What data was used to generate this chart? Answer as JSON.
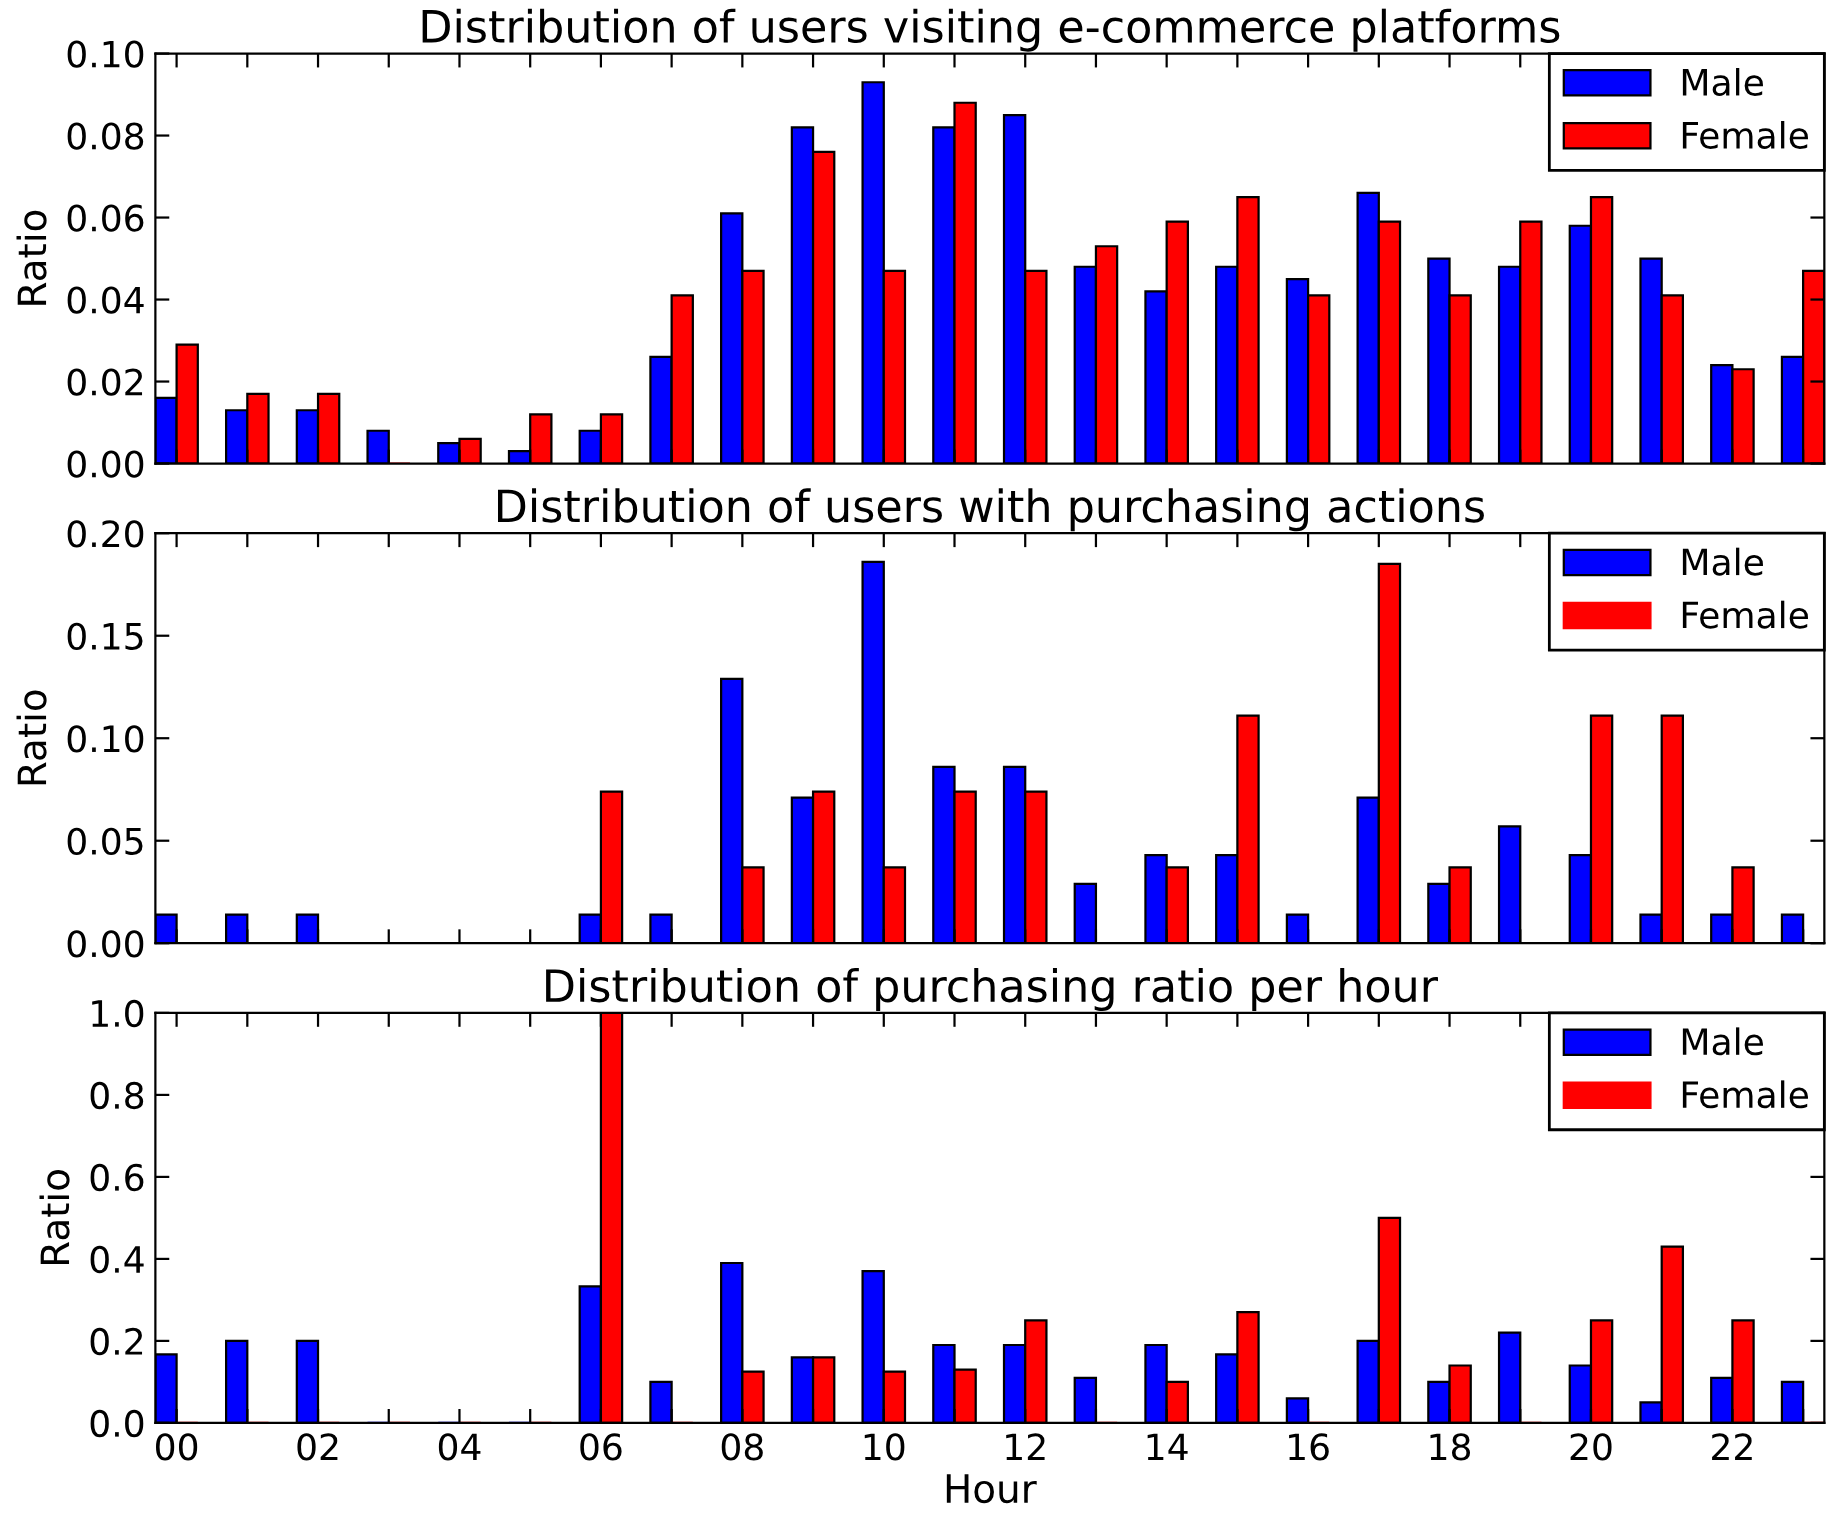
{
  "chart_data": [
    {
      "type": "bar",
      "title": "Distribution of users visiting e-commerce platforms",
      "ylabel": "Ratio",
      "categories": [
        "00",
        null,
        "02",
        null,
        "04",
        null,
        "06",
        null,
        "08",
        null,
        "10",
        null,
        "12",
        null,
        "14",
        null,
        "16",
        null,
        "18",
        null,
        "20",
        null,
        "22",
        null
      ],
      "series": [
        {
          "name": "Male",
          "color": "#0000ff",
          "values": [
            0.016,
            0.013,
            0.013,
            0.008,
            0.005,
            0.003,
            0.008,
            0.026,
            0.061,
            0.082,
            0.093,
            0.082,
            0.085,
            0.048,
            0.042,
            0.048,
            0.045,
            0.066,
            0.05,
            0.048,
            0.058,
            0.05,
            0.024,
            0.026
          ]
        },
        {
          "name": "Female",
          "color": "#ff0000",
          "values": [
            0.029,
            0.017,
            0.017,
            0,
            0.006,
            0.012,
            0.012,
            0.041,
            0.047,
            0.076,
            0.047,
            0.088,
            0.047,
            0.053,
            0.059,
            0.065,
            0.041,
            0.059,
            0.041,
            0.059,
            0.065,
            0.041,
            0.023,
            0.047
          ]
        }
      ],
      "ylim": [
        0,
        0.1
      ],
      "yticks": [
        {
          "value": 0,
          "label": "0.00"
        },
        {
          "value": 0.02,
          "label": "0.02"
        },
        {
          "value": 0.04,
          "label": "0.04"
        },
        {
          "value": 0.06,
          "label": "0.06"
        },
        {
          "value": 0.08,
          "label": "0.08"
        },
        {
          "value": 0.1,
          "label": "0.10"
        }
      ],
      "legend": "top right",
      "tick_labels": "y"
    },
    {
      "type": "bar",
      "title": "Distribution of users with purchasing actions",
      "ylabel": "Ratio",
      "categories": [
        "00",
        null,
        "02",
        null,
        "04",
        null,
        "06",
        null,
        "08",
        null,
        "10",
        null,
        "12",
        null,
        "14",
        null,
        "16",
        null,
        "18",
        null,
        "20",
        null,
        "22",
        null
      ],
      "series": [
        {
          "name": "Male",
          "color": "#0000ff",
          "values": [
            0.014,
            0.014,
            0.014,
            0,
            0,
            0,
            0.014,
            0.014,
            0.129,
            0.071,
            0.186,
            0.086,
            0.086,
            0.029,
            0.043,
            0.043,
            0.014,
            0.071,
            0.029,
            0.057,
            0.043,
            0.014,
            0.014,
            0.014
          ]
        },
        {
          "name": "Female",
          "color": "#ff0000",
          "values": [
            0,
            0,
            0,
            0,
            0,
            0,
            0.074,
            0,
            0.037,
            0.074,
            0.037,
            0.074,
            0.074,
            0,
            0.037,
            0.111,
            0,
            0.185,
            0.037,
            0,
            0.111,
            0.111,
            0.037,
            0
          ]
        }
      ],
      "ylim": [
        0,
        0.2
      ],
      "yticks": [
        {
          "value": 0,
          "label": "0.00"
        },
        {
          "value": 0.05,
          "label": "0.05"
        },
        {
          "value": 0.1,
          "label": "0.10"
        },
        {
          "value": 0.15,
          "label": "0.15"
        },
        {
          "value": 0.2,
          "label": "0.20"
        }
      ],
      "legend": "top right",
      "tick_labels": "y"
    },
    {
      "type": "bar",
      "title": "Distribution of purchasing ratio per hour",
      "xlabel": "Hour",
      "ylabel": "Ratio",
      "categories": [
        "00",
        null,
        "02",
        null,
        "04",
        null,
        "06",
        null,
        "08",
        null,
        "10",
        null,
        "12",
        null,
        "14",
        null,
        "16",
        null,
        "18",
        null,
        "20",
        null,
        "22",
        null
      ],
      "series": [
        {
          "name": "Male",
          "color": "#0000ff",
          "values": [
            0.167,
            0.2,
            0.2,
            0,
            0,
            0,
            0.333,
            0.1,
            0.39,
            0.16,
            0.37,
            0.19,
            0.19,
            0.11,
            0.19,
            0.167,
            0.06,
            0.2,
            0.1,
            0.22,
            0.14,
            0.05,
            0.11,
            0.1
          ]
        },
        {
          "name": "Female",
          "color": "#ff0000",
          "values": [
            0,
            0,
            0,
            0,
            0,
            0,
            1.0,
            0,
            0.125,
            0.16,
            0.125,
            0.13,
            0.25,
            0,
            0.1,
            0.27,
            0,
            0.5,
            0.14,
            0,
            0.25,
            0.43,
            0.25,
            0
          ]
        }
      ],
      "ylim": [
        0,
        1.0
      ],
      "yticks": [
        {
          "value": 0,
          "label": "0.0"
        },
        {
          "value": 0.2,
          "label": "0.2"
        },
        {
          "value": 0.4,
          "label": "0.4"
        },
        {
          "value": 0.6,
          "label": "0.6"
        },
        {
          "value": 0.8,
          "label": "0.8"
        },
        {
          "value": 1.0,
          "label": "1.0"
        }
      ],
      "legend": "top right"
    }
  ]
}
